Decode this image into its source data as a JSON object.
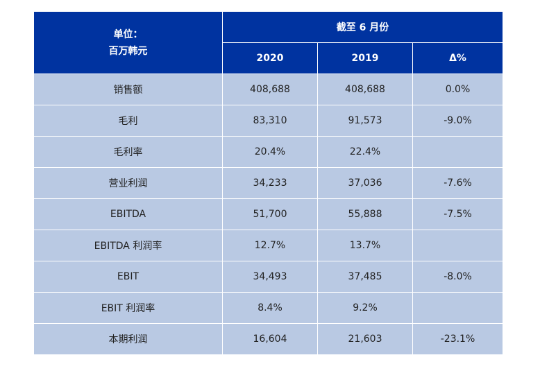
{
  "header": {
    "unit_line1": "单位：",
    "unit_line2": "百万韩元",
    "period": "截至 6 月份",
    "col_2020": "2020",
    "col_2019": "2019",
    "col_delta": "Δ%"
  },
  "rows": [
    {
      "label": "销售额",
      "v2020": "408,688",
      "v2019": "408,688",
      "delta": "0.0%"
    },
    {
      "label": "毛利",
      "v2020": "83,310",
      "v2019": "91,573",
      "delta": "-9.0%"
    },
    {
      "label": "毛利率",
      "v2020": "20.4%",
      "v2019": "22.4%",
      "delta": ""
    },
    {
      "label": "营业利润",
      "v2020": "34,233",
      "v2019": "37,036",
      "delta": "-7.6%"
    },
    {
      "label": "EBITDA",
      "v2020": "51,700",
      "v2019": "55,888",
      "delta": "-7.5%"
    },
    {
      "label": "EBITDA 利润率",
      "v2020": "12.7%",
      "v2019": "13.7%",
      "delta": ""
    },
    {
      "label": "EBIT",
      "v2020": "34,493",
      "v2019": "37,485",
      "delta": "-8.0%"
    },
    {
      "label": "EBIT 利润率",
      "v2020": "8.4%",
      "v2019": "9.2%",
      "delta": ""
    },
    {
      "label": "本期利润",
      "v2020": "16,604",
      "v2019": "21,603",
      "delta": "-23.1%"
    }
  ],
  "colors": {
    "header_bg": "#0033a0",
    "row_bg": "#b9c9e3"
  }
}
